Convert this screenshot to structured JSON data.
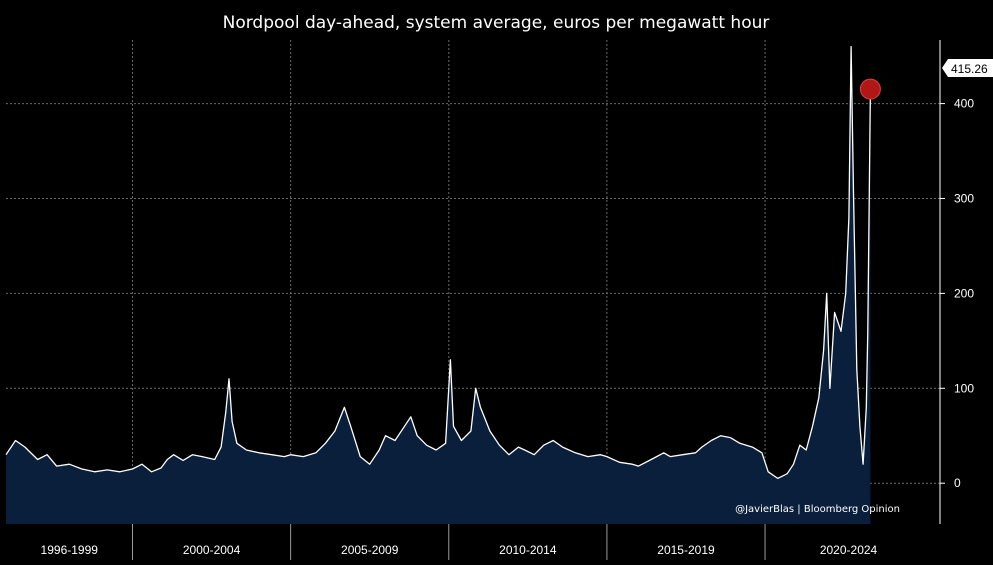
{
  "chart_data": {
    "type": "area",
    "title": "Nordpool day-ahead, system average, euros per megawatt hour",
    "xlabel": "",
    "ylabel": "",
    "x_range": [
      1996,
      2025
    ],
    "ylim": [
      -43,
      467
    ],
    "y_ticks": [
      0,
      100,
      200,
      300,
      400
    ],
    "x_period_labels": [
      "1996-1999",
      "2000-2004",
      "2005-2009",
      "2010-2014",
      "2015-2019",
      "2020-2024"
    ],
    "grid": true,
    "series": [
      {
        "color": "#ffffff",
        "fill_color": "#0a1f3b",
        "points": [
          [
            1996.0,
            30
          ],
          [
            1996.3,
            45
          ],
          [
            1996.6,
            38
          ],
          [
            1997.0,
            25
          ],
          [
            1997.3,
            30
          ],
          [
            1997.6,
            18
          ],
          [
            1998.0,
            20
          ],
          [
            1998.4,
            15
          ],
          [
            1998.8,
            12
          ],
          [
            1999.2,
            14
          ],
          [
            1999.6,
            12
          ],
          [
            2000.0,
            15
          ],
          [
            2000.3,
            20
          ],
          [
            2000.6,
            12
          ],
          [
            2000.9,
            16
          ],
          [
            2001.1,
            25
          ],
          [
            2001.3,
            30
          ],
          [
            2001.6,
            24
          ],
          [
            2001.9,
            30
          ],
          [
            2002.2,
            28
          ],
          [
            2002.6,
            25
          ],
          [
            2002.8,
            38
          ],
          [
            2002.95,
            75
          ],
          [
            2003.05,
            110
          ],
          [
            2003.15,
            65
          ],
          [
            2003.3,
            42
          ],
          [
            2003.6,
            35
          ],
          [
            2004.0,
            32
          ],
          [
            2004.4,
            30
          ],
          [
            2004.8,
            28
          ],
          [
            2005.0,
            30
          ],
          [
            2005.4,
            28
          ],
          [
            2005.8,
            32
          ],
          [
            2006.1,
            42
          ],
          [
            2006.4,
            55
          ],
          [
            2006.7,
            80
          ],
          [
            2006.9,
            60
          ],
          [
            2007.2,
            28
          ],
          [
            2007.5,
            20
          ],
          [
            2007.8,
            35
          ],
          [
            2008.0,
            50
          ],
          [
            2008.3,
            45
          ],
          [
            2008.6,
            60
          ],
          [
            2008.8,
            70
          ],
          [
            2009.0,
            50
          ],
          [
            2009.3,
            40
          ],
          [
            2009.6,
            35
          ],
          [
            2009.9,
            42
          ],
          [
            2010.05,
            130
          ],
          [
            2010.15,
            60
          ],
          [
            2010.4,
            45
          ],
          [
            2010.7,
            55
          ],
          [
            2010.85,
            100
          ],
          [
            2011.0,
            80
          ],
          [
            2011.3,
            55
          ],
          [
            2011.6,
            40
          ],
          [
            2011.9,
            30
          ],
          [
            2012.2,
            38
          ],
          [
            2012.4,
            35
          ],
          [
            2012.7,
            30
          ],
          [
            2013.0,
            40
          ],
          [
            2013.3,
            45
          ],
          [
            2013.6,
            38
          ],
          [
            2014.0,
            32
          ],
          [
            2014.4,
            28
          ],
          [
            2014.8,
            30
          ],
          [
            2015.0,
            28
          ],
          [
            2015.4,
            22
          ],
          [
            2015.8,
            20
          ],
          [
            2016.0,
            18
          ],
          [
            2016.4,
            25
          ],
          [
            2016.8,
            32
          ],
          [
            2017.0,
            28
          ],
          [
            2017.4,
            30
          ],
          [
            2017.8,
            32
          ],
          [
            2018.0,
            38
          ],
          [
            2018.3,
            45
          ],
          [
            2018.6,
            50
          ],
          [
            2018.9,
            48
          ],
          [
            2019.2,
            42
          ],
          [
            2019.6,
            38
          ],
          [
            2019.9,
            32
          ],
          [
            2020.1,
            12
          ],
          [
            2020.4,
            5
          ],
          [
            2020.7,
            10
          ],
          [
            2020.9,
            20
          ],
          [
            2021.1,
            40
          ],
          [
            2021.3,
            35
          ],
          [
            2021.5,
            60
          ],
          [
            2021.7,
            90
          ],
          [
            2021.85,
            140
          ],
          [
            2021.95,
            200
          ],
          [
            2022.05,
            100
          ],
          [
            2022.2,
            180
          ],
          [
            2022.4,
            160
          ],
          [
            2022.55,
            200
          ],
          [
            2022.65,
            280
          ],
          [
            2022.72,
            460
          ],
          [
            2022.8,
            300
          ],
          [
            2022.9,
            120
          ],
          [
            2023.0,
            60
          ],
          [
            2023.1,
            20
          ],
          [
            2023.2,
            80
          ],
          [
            2023.25,
            160
          ],
          [
            2023.33,
            415.26
          ]
        ]
      }
    ],
    "annotation": {
      "last_value_label": "415.26",
      "marker_color": "#b01818"
    },
    "footer": "@JavierBlas | Bloomberg Opinion"
  }
}
